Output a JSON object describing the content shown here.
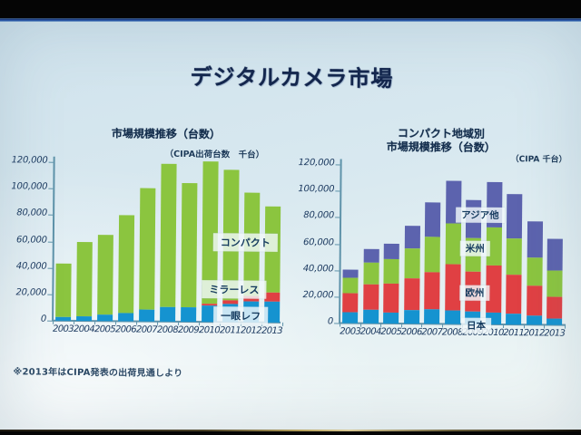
{
  "slide": {
    "title": "デジタルカメラ市場",
    "footnote": "※2013年はCIPA発表の出荷見通しより"
  },
  "chart_data": [
    {
      "type": "bar",
      "stacked": true,
      "title": "市場規模推移（台数）",
      "subtitle": "（CIPA出荷台数　千台）",
      "categories": [
        "2003",
        "2004",
        "2005",
        "2006",
        "2007",
        "2008",
        "2009",
        "2010",
        "2011",
        "2012",
        "2013"
      ],
      "series": [
        {
          "name": "一眼レフ",
          "color": "#1593d0",
          "values": [
            2500,
            3500,
            4500,
            6000,
            9000,
            11000,
            11000,
            12500,
            14000,
            16000,
            16000
          ]
        },
        {
          "name": "ミラーレス",
          "color": "#e04043",
          "values": [
            0,
            0,
            0,
            0,
            0,
            0,
            0,
            1500,
            2500,
            4000,
            6500
          ]
        },
        {
          "name": "コンパクト",
          "color": "#8bc53f",
          "values": [
            40500,
            56500,
            60500,
            74000,
            92000,
            108500,
            94000,
            107500,
            99000,
            78000,
            65000
          ]
        }
      ],
      "ylim": [
        0,
        120000
      ],
      "yticks": [
        "0",
        "20,000",
        "40,000",
        "60,000",
        "80,000",
        "100,000",
        "120,000"
      ],
      "grid": false,
      "legend_position": "overlay-on-bars"
    },
    {
      "type": "bar",
      "stacked": true,
      "title_line1": "コンパクト地域別",
      "title_line2": "市場規模推移（台数）",
      "subtitle": "（CIPA 千台）",
      "categories": [
        "2003",
        "2004",
        "2005",
        "2006",
        "2007",
        "2008",
        "2009",
        "2010",
        "2011",
        "2012",
        "2013"
      ],
      "series": [
        {
          "name": "日本",
          "color": "#1593d0",
          "values": [
            8500,
            10000,
            8000,
            10000,
            11000,
            10500,
            9500,
            9000,
            8000,
            7000,
            5000
          ]
        },
        {
          "name": "欧州",
          "color": "#e04043",
          "values": [
            14000,
            19500,
            22000,
            24000,
            28000,
            35000,
            30000,
            35500,
            30000,
            22500,
            16500
          ]
        },
        {
          "name": "米州",
          "color": "#8bc53f",
          "values": [
            12000,
            16500,
            18500,
            23000,
            27000,
            31000,
            25500,
            29000,
            27000,
            21500,
            19500
          ]
        },
        {
          "name": "アジア他",
          "color": "#5c63ae",
          "values": [
            6000,
            10500,
            12000,
            17000,
            26000,
            32000,
            29000,
            34000,
            34000,
            27000,
            24000
          ]
        }
      ],
      "ylim": [
        0,
        120000
      ],
      "yticks": [
        "0",
        "20,000",
        "40,000",
        "60,000",
        "80,000",
        "100,000",
        "120,000"
      ],
      "grid": false,
      "legend_position": "overlay-on-bars"
    }
  ]
}
